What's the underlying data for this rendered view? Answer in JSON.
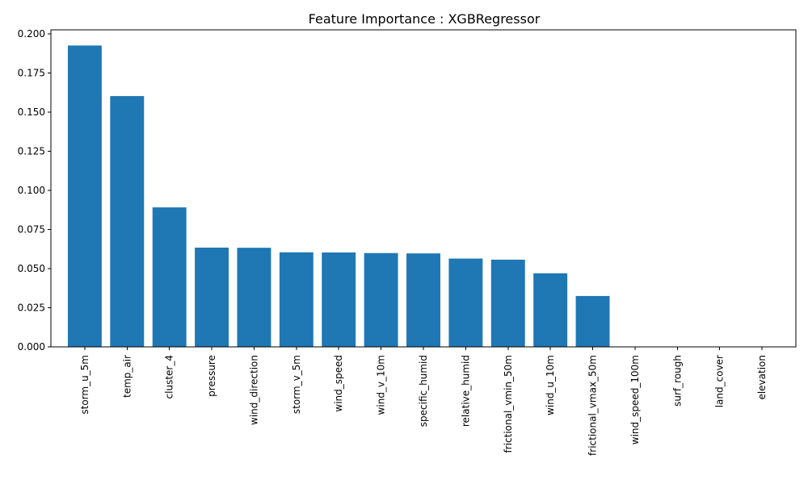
{
  "chart_data": {
    "type": "bar",
    "title": "Feature Importance : XGBRegressor",
    "xlabel": "",
    "ylabel": "",
    "categories": [
      "storm_u_5m",
      "temp_air",
      "cluster_4",
      "pressure",
      "wind_direction",
      "storm_v_5m",
      "wind_speed",
      "wind_v_10m",
      "specific_humid",
      "relative_humid",
      "frictional_vmin_50m",
      "wind_u_10m",
      "frictional_vmax_50m",
      "wind_speed_100m",
      "surf_rough",
      "land_cover",
      "elevation"
    ],
    "values": [
      0.1925,
      0.1602,
      0.0891,
      0.0634,
      0.0633,
      0.0604,
      0.0603,
      0.0599,
      0.0597,
      0.0564,
      0.0557,
      0.047,
      0.0325,
      0.0,
      0.0,
      0.0,
      0.0
    ],
    "ylim": [
      0,
      0.2025
    ],
    "yticks": [
      0.0,
      0.025,
      0.05,
      0.075,
      0.1,
      0.125,
      0.15,
      0.175,
      0.2
    ],
    "ytick_labels": [
      "0.000",
      "0.025",
      "0.050",
      "0.075",
      "0.100",
      "0.125",
      "0.150",
      "0.175",
      "0.200"
    ],
    "grid": false,
    "legend": "none",
    "bar_color": "#1f77b4"
  }
}
